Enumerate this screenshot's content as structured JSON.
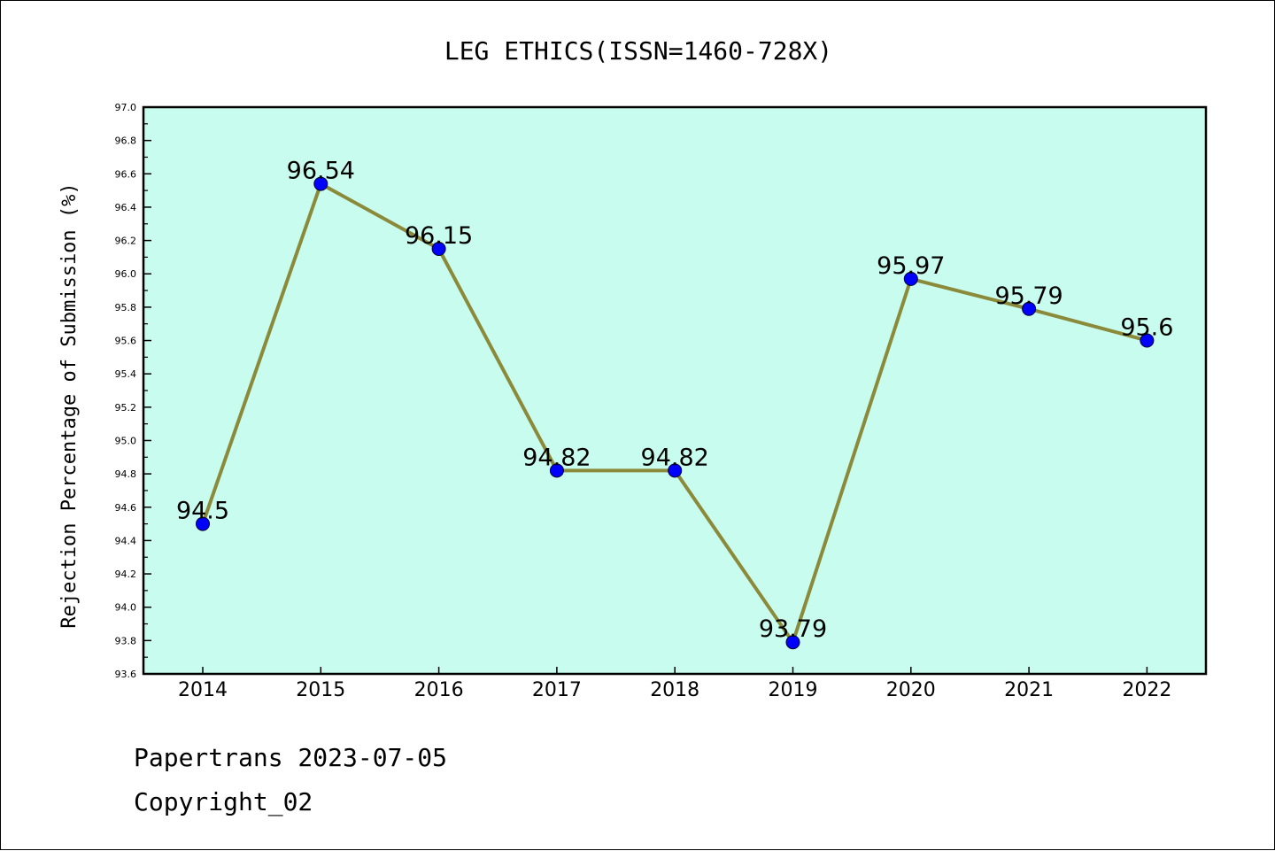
{
  "chart_data": {
    "type": "line",
    "title": "LEG ETHICS(ISSN=1460-728X)",
    "ylabel": "Rejection Percentage of Submission (%)",
    "xlabel": "",
    "categories": [
      "2014",
      "2015",
      "2016",
      "2017",
      "2018",
      "2019",
      "2020",
      "2021",
      "2022"
    ],
    "values": [
      94.5,
      96.54,
      96.15,
      94.82,
      94.82,
      93.79,
      95.97,
      95.79,
      95.6
    ],
    "data_labels": [
      "94.5",
      "96.54",
      "96.15",
      "94.82",
      "94.82",
      "93.79",
      "95.97",
      "95.79",
      "95.6"
    ],
    "ylim": [
      93.6,
      97.0
    ],
    "yticks": [
      "93.6",
      "93.8",
      "94.0",
      "94.2",
      "94.4",
      "94.6",
      "94.8",
      "95.0",
      "95.2",
      "95.4",
      "95.6",
      "95.8",
      "96.0",
      "96.2",
      "96.4",
      "96.6",
      "96.8",
      "97.0"
    ],
    "grid": false,
    "colors": {
      "plot_background": "#c8fcee",
      "line": "#8b8a3a",
      "marker": "#0000ff"
    }
  },
  "footer": {
    "line1": "Papertrans 2023-07-05",
    "line2": "Copyright_02"
  }
}
